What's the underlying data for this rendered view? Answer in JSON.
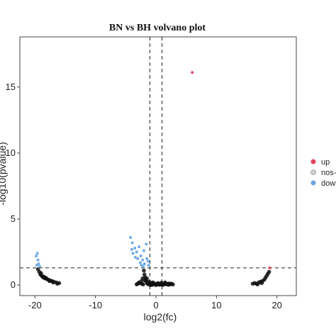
{
  "chart_data": {
    "type": "scatter",
    "title": "BN vs BH volvano plot",
    "xlabel": "log2(fc)",
    "ylabel": "-log10(pvalue)",
    "xlim": [
      -22.5,
      23.2
    ],
    "ylim": [
      -0.8,
      18.8
    ],
    "x_ticks": [
      -20,
      -10,
      0,
      10,
      20
    ],
    "y_ticks": [
      0,
      5,
      10,
      15
    ],
    "grid": false,
    "vlines": [
      -1,
      1
    ],
    "hline": 1.3,
    "legend_position": "right",
    "series": [
      {
        "name": "up",
        "color": "#e0455f",
        "points": [
          [
            6,
            16.1
          ],
          [
            18.8,
            1.3
          ]
        ]
      },
      {
        "name": "nos-",
        "color": "#111111",
        "points": [
          [
            -19.5,
            1.2
          ],
          [
            -19.3,
            1.0
          ],
          [
            -19.1,
            0.8
          ],
          [
            -18.9,
            0.7
          ],
          [
            -18.7,
            0.6
          ],
          [
            -18.5,
            0.55
          ],
          [
            -18.3,
            0.5
          ],
          [
            -18.0,
            0.45
          ],
          [
            -17.8,
            0.4
          ],
          [
            -17.5,
            0.35
          ],
          [
            -17.2,
            0.3
          ],
          [
            -16.9,
            0.25
          ],
          [
            -16.5,
            0.2
          ],
          [
            -16.0,
            0.15
          ],
          [
            -19.0,
            0.9
          ],
          [
            -18.6,
            0.65
          ],
          [
            -18.2,
            0.55
          ],
          [
            -17.6,
            0.3
          ],
          [
            -17.0,
            0.2
          ],
          [
            -16.3,
            0.1
          ],
          [
            -2.0,
            1.1
          ],
          [
            -1.9,
            0.8
          ],
          [
            -1.8,
            0.6
          ],
          [
            -1.7,
            0.4
          ],
          [
            -1.6,
            0.3
          ],
          [
            -1.5,
            0.2
          ],
          [
            -1.4,
            0.1
          ],
          [
            -1.2,
            0.05
          ],
          [
            -1.0,
            0.02
          ],
          [
            -0.8,
            0.0
          ],
          [
            -0.6,
            0.03
          ],
          [
            -0.4,
            0.05
          ],
          [
            -0.2,
            0.08
          ],
          [
            0.0,
            0.0
          ],
          [
            0.2,
            0.04
          ],
          [
            0.4,
            0.06
          ],
          [
            0.6,
            0.02
          ],
          [
            0.8,
            0.05
          ],
          [
            1.0,
            0.03
          ],
          [
            1.2,
            0.02
          ],
          [
            1.4,
            0.07
          ],
          [
            1.6,
            0.1
          ],
          [
            1.8,
            0.05
          ],
          [
            2.0,
            0.08
          ],
          [
            2.2,
            0.12
          ],
          [
            2.4,
            0.06
          ],
          [
            2.6,
            0.1
          ],
          [
            2.8,
            0.04
          ],
          [
            -2.2,
            0.5
          ],
          [
            -2.4,
            0.3
          ],
          [
            -2.6,
            0.15
          ],
          [
            -2.8,
            0.2
          ],
          [
            -3.0,
            0.1
          ],
          [
            -3.2,
            0.05
          ],
          [
            -0.5,
            0.2
          ],
          [
            -1.1,
            0.25
          ],
          [
            -1.3,
            0.15
          ],
          [
            0.3,
            0.15
          ],
          [
            0.9,
            0.18
          ],
          [
            1.5,
            0.2
          ],
          [
            -0.9,
            0.1
          ],
          [
            -2.1,
            0.05
          ],
          [
            -1.5,
            0.5
          ],
          [
            -1.8,
            0.35
          ],
          [
            -2.3,
            0.08
          ],
          [
            0.5,
            0.1
          ],
          [
            1.7,
            0.12
          ],
          [
            2.1,
            0.02
          ],
          [
            -0.3,
            0.12
          ],
          [
            -0.7,
            0.15
          ],
          [
            16.0,
            0.1
          ],
          [
            16.3,
            0.15
          ],
          [
            16.6,
            0.1
          ],
          [
            17.0,
            0.2
          ],
          [
            17.3,
            0.25
          ],
          [
            17.6,
            0.3
          ],
          [
            17.9,
            0.4
          ],
          [
            18.1,
            0.55
          ],
          [
            18.3,
            0.7
          ],
          [
            18.5,
            0.85
          ],
          [
            18.7,
            1.0
          ],
          [
            16.8,
            0.05
          ],
          [
            17.5,
            0.15
          ]
        ]
      },
      {
        "name": "down",
        "color": "#6aa6e0",
        "points": [
          [
            -19.6,
            2.4
          ],
          [
            -19.8,
            2.2
          ],
          [
            -19.5,
            1.9
          ],
          [
            -19.4,
            1.6
          ],
          [
            -19.7,
            1.5
          ],
          [
            -19.2,
            1.4
          ],
          [
            -4.2,
            3.6
          ],
          [
            -3.9,
            3.2
          ],
          [
            -3.5,
            2.8
          ],
          [
            -3.2,
            2.5
          ],
          [
            -2.8,
            2.9
          ],
          [
            -2.5,
            2.2
          ],
          [
            -2.2,
            1.9
          ],
          [
            -1.9,
            1.6
          ],
          [
            -3.0,
            2.0
          ],
          [
            -2.6,
            1.7
          ],
          [
            -3.8,
            2.4
          ],
          [
            -1.5,
            2.0
          ],
          [
            -1.3,
            1.8
          ],
          [
            -1.2,
            1.5
          ],
          [
            -2.0,
            2.6
          ],
          [
            -3.4,
            2.1
          ],
          [
            -2.4,
            1.5
          ],
          [
            -4.0,
            2.7
          ],
          [
            -1.6,
            3.1
          ],
          [
            -2.1,
            1.4
          ]
        ]
      }
    ]
  }
}
